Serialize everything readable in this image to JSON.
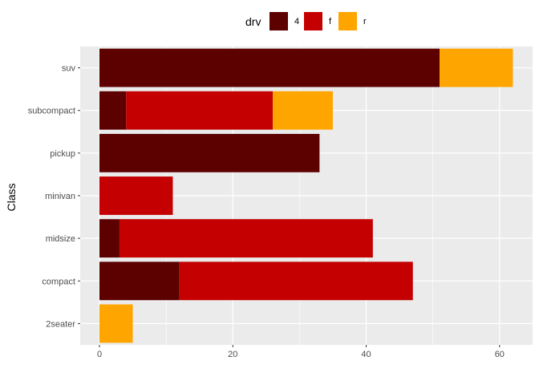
{
  "chart_data": {
    "type": "bar",
    "orientation": "horizontal",
    "stacked": true,
    "categories": [
      "2seater",
      "compact",
      "midsize",
      "minivan",
      "pickup",
      "subcompact",
      "suv"
    ],
    "series": [
      {
        "name": "4",
        "color": "#5c0000",
        "values": [
          0,
          12,
          3,
          0,
          33,
          4,
          51
        ]
      },
      {
        "name": "f",
        "color": "#c40000",
        "values": [
          0,
          35,
          38,
          11,
          0,
          22,
          0
        ]
      },
      {
        "name": "r",
        "color": "#ffa500",
        "values": [
          5,
          0,
          0,
          0,
          0,
          9,
          11
        ]
      }
    ],
    "xlabel": "",
    "ylabel": "Class",
    "xlim": [
      0,
      65
    ],
    "xticks": [
      0,
      20,
      40,
      60
    ],
    "grid": true,
    "legend": {
      "title": "drv",
      "position": "top"
    },
    "panel_background": "#ebebeb",
    "grid_color": "#ffffff"
  }
}
